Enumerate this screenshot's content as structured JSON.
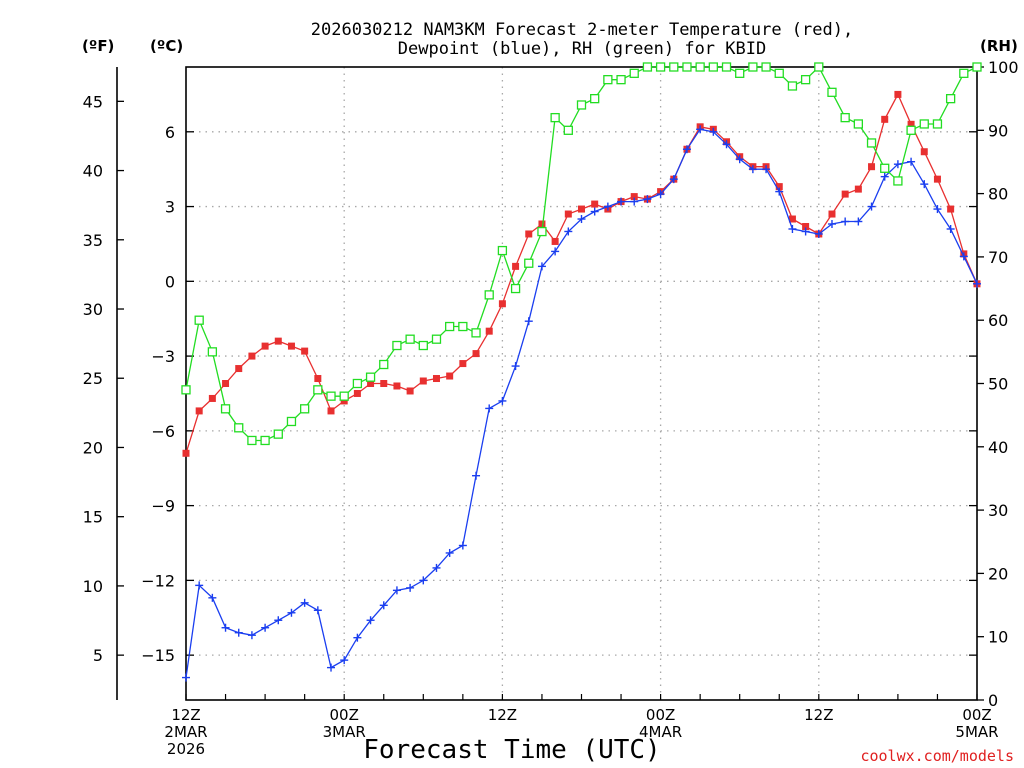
{
  "chart_data": {
    "type": "line",
    "title": [
      "2026030212 NAM3KM Forecast 2-meter Temperature (red),",
      "Dewpoint (blue), RH (green) for KBID"
    ],
    "xlabel": "Forecast Time (UTC)",
    "credit": "coolwx.com/models",
    "units": {
      "f": "(ºF)",
      "c": "(ºC)",
      "rh": "(RH)"
    },
    "x_range_hours": [
      0,
      60
    ],
    "x_ticks": [
      {
        "hour": 0,
        "lines": [
          "12Z",
          "2MAR",
          "2026"
        ]
      },
      {
        "hour": 12,
        "lines": [
          "00Z",
          "3MAR"
        ]
      },
      {
        "hour": 24,
        "lines": [
          "12Z"
        ]
      },
      {
        "hour": 36,
        "lines": [
          "00Z",
          "4MAR"
        ]
      },
      {
        "hour": 48,
        "lines": [
          "12Z"
        ]
      },
      {
        "hour": 60,
        "lines": [
          "00Z",
          "5MAR"
        ]
      }
    ],
    "ylim_c": [
      -16.8,
      8.6
    ],
    "y_ticks_c": [
      -15,
      -12,
      -9,
      -6,
      -3,
      0,
      3,
      6
    ],
    "y_ticks_f": [
      5,
      10,
      15,
      20,
      25,
      30,
      35,
      40,
      45
    ],
    "y_ticks_rh": [
      0,
      10,
      20,
      30,
      40,
      50,
      60,
      70,
      80,
      90,
      100
    ],
    "ylim_rh": [
      0,
      100
    ],
    "grid": true,
    "series": [
      {
        "name": "Temperature",
        "unit": "C",
        "color": "#e83030",
        "marker": "filled-square",
        "x": [
          0,
          1,
          2,
          3,
          4,
          5,
          6,
          7,
          8,
          9,
          10,
          11,
          12,
          13,
          14,
          15,
          16,
          17,
          18,
          19,
          20,
          21,
          22,
          23,
          24,
          25,
          26,
          27,
          28,
          29,
          30,
          31,
          32,
          33,
          34,
          35,
          36,
          37,
          38,
          39,
          40,
          41,
          42,
          43,
          44,
          45,
          46,
          47,
          48,
          49,
          50,
          51,
          52,
          53,
          54,
          55,
          56,
          57,
          58,
          59,
          60
        ],
        "values": [
          -6.9,
          -5.2,
          -4.7,
          -4.1,
          -3.5,
          -3.0,
          -2.6,
          -2.4,
          -2.6,
          -2.8,
          -3.9,
          -5.2,
          -4.8,
          -4.5,
          -4.1,
          -4.1,
          -4.2,
          -4.4,
          -4.0,
          -3.9,
          -3.8,
          -3.3,
          -2.9,
          -2.0,
          -0.9,
          0.6,
          1.9,
          2.3,
          1.6,
          2.7,
          2.9,
          3.1,
          2.9,
          3.2,
          3.4,
          3.3,
          3.6,
          4.1,
          5.3,
          6.2,
          6.1,
          5.6,
          5.0,
          4.6,
          4.6,
          3.8,
          2.5,
          2.2,
          1.9,
          2.7,
          3.5,
          3.7,
          4.6,
          6.5,
          7.5,
          6.3,
          5.2,
          4.1,
          2.9,
          1.1,
          -0.1
        ]
      },
      {
        "name": "Dewpoint",
        "unit": "C",
        "color": "#1a3ef0",
        "marker": "plus",
        "x": [
          0,
          1,
          2,
          3,
          4,
          5,
          6,
          7,
          8,
          9,
          10,
          11,
          12,
          13,
          14,
          15,
          16,
          17,
          18,
          19,
          20,
          21,
          22,
          23,
          24,
          25,
          26,
          27,
          28,
          29,
          30,
          31,
          32,
          33,
          34,
          35,
          36,
          37,
          38,
          39,
          40,
          41,
          42,
          43,
          44,
          45,
          46,
          47,
          48,
          49,
          50,
          51,
          52,
          53,
          54,
          55,
          56,
          57,
          58,
          59,
          60
        ],
        "values": [
          -15.9,
          -12.2,
          -12.7,
          -13.9,
          -14.1,
          -14.2,
          -13.9,
          -13.6,
          -13.3,
          -12.9,
          -13.2,
          -15.5,
          -15.2,
          -14.3,
          -13.6,
          -13.0,
          -12.4,
          -12.3,
          -12.0,
          -11.5,
          -10.9,
          -10.6,
          -7.8,
          -5.1,
          -4.8,
          -3.4,
          -1.6,
          0.6,
          1.2,
          2.0,
          2.5,
          2.8,
          3.0,
          3.2,
          3.2,
          3.3,
          3.5,
          4.1,
          5.3,
          6.1,
          6.0,
          5.5,
          4.9,
          4.5,
          4.5,
          3.6,
          2.1,
          2.0,
          1.9,
          2.3,
          2.4,
          2.4,
          3.0,
          4.2,
          4.7,
          4.8,
          3.9,
          2.9,
          2.1,
          1.0,
          -0.1
        ]
      },
      {
        "name": "RH",
        "unit": "%",
        "color": "#22dd22",
        "marker": "open-square",
        "x": [
          0,
          1,
          2,
          3,
          4,
          5,
          6,
          7,
          8,
          9,
          10,
          11,
          12,
          13,
          14,
          15,
          16,
          17,
          18,
          19,
          20,
          21,
          22,
          23,
          24,
          25,
          26,
          27,
          28,
          29,
          30,
          31,
          32,
          33,
          34,
          35,
          36,
          37,
          38,
          39,
          40,
          41,
          42,
          43,
          44,
          45,
          46,
          47,
          48,
          49,
          50,
          51,
          52,
          53,
          54,
          55,
          56,
          57,
          58,
          59,
          60
        ],
        "values": [
          49,
          60,
          55,
          46,
          43,
          41,
          41,
          42,
          44,
          46,
          49,
          48,
          48,
          50,
          51,
          53,
          56,
          57,
          56,
          57,
          59,
          59,
          58,
          64,
          71,
          65,
          69,
          74,
          92,
          90,
          94,
          95,
          98,
          98,
          99,
          100,
          100,
          100,
          100,
          100,
          100,
          100,
          99,
          100,
          100,
          99,
          97,
          98,
          100,
          96,
          92,
          91,
          88,
          84,
          82,
          90,
          91,
          91,
          95,
          99,
          100
        ]
      }
    ]
  }
}
